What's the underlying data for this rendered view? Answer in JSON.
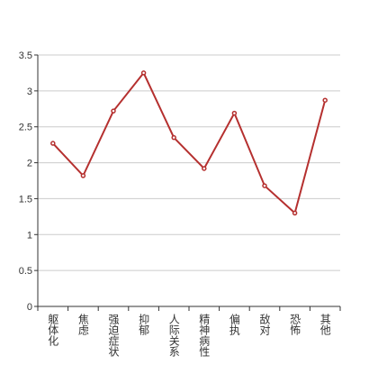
{
  "chart_data": {
    "type": "line",
    "categories": [
      "躯体化",
      "焦虑",
      "强迫症状",
      "抑郁",
      "人际关系",
      "精神病性",
      "偏执",
      "敌对",
      "恐怖",
      "其他"
    ],
    "values": [
      2.27,
      1.82,
      2.72,
      3.25,
      2.35,
      1.92,
      2.69,
      1.68,
      1.3,
      2.87
    ],
    "color": "#b5302f",
    "ylim": [
      0,
      3.5
    ],
    "yticks": [
      0,
      0.5,
      1,
      1.5,
      2,
      2.5,
      3,
      3.5
    ],
    "grid": true
  }
}
